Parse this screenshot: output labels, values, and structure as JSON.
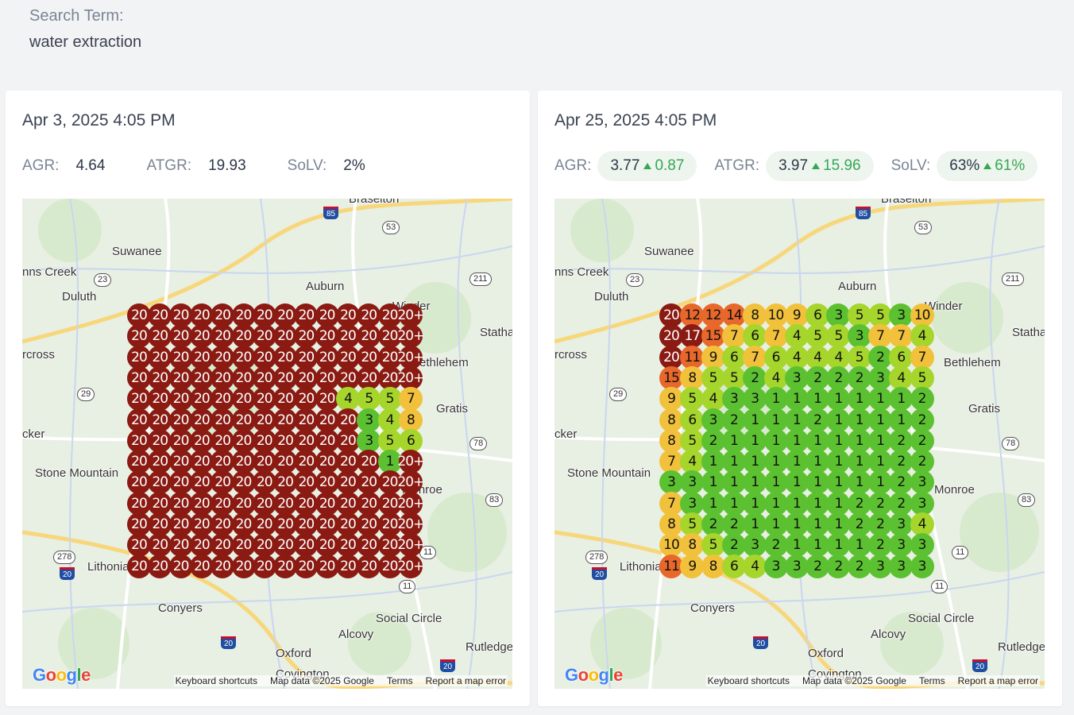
{
  "search": {
    "label": "Search Term:",
    "value": "water extraction"
  },
  "colors": {
    "rank_1_3": "#5cc130",
    "rank_4_6": "#a6d52c",
    "rank_7_10": "#f2c13b",
    "rank_11_15": "#e8672a",
    "rank_16_plus": "#8a1a12",
    "pill_bg": "#eef5ef",
    "delta_green": "#34a853"
  },
  "reports": [
    {
      "date": "Apr 3, 2025 4:05 PM",
      "metrics": [
        {
          "label": "AGR:",
          "value": "4.64"
        },
        {
          "label": "ATGR:",
          "value": "19.93"
        },
        {
          "label": "SoLV:",
          "value": "2%"
        }
      ],
      "grid": [
        [
          "20",
          "20",
          "20",
          "20",
          "20",
          "20",
          "20",
          "20",
          "20",
          "20",
          "20",
          "20",
          "20",
          "20+"
        ],
        [
          "20",
          "20",
          "20",
          "20",
          "20",
          "20",
          "20",
          "20",
          "20",
          "20",
          "20",
          "20",
          "20",
          "20+"
        ],
        [
          "20",
          "20",
          "20",
          "20",
          "20",
          "20",
          "20",
          "20",
          "20",
          "20",
          "20",
          "20",
          "20",
          "20+"
        ],
        [
          "20",
          "20",
          "20",
          "20",
          "20",
          "20",
          "20",
          "20",
          "20",
          "20",
          "20",
          "20",
          "20",
          "20+"
        ],
        [
          "20",
          "20",
          "20",
          "20",
          "20",
          "20",
          "20",
          "20",
          "20",
          "20",
          "4",
          "5",
          "5",
          "7"
        ],
        [
          "20",
          "20",
          "20",
          "20",
          "20",
          "20",
          "20",
          "20",
          "20",
          "20",
          "20",
          "3",
          "4",
          "8"
        ],
        [
          "20",
          "20",
          "20",
          "20",
          "20",
          "20",
          "20",
          "20",
          "20",
          "20",
          "20",
          "3",
          "5",
          "6"
        ],
        [
          "20",
          "20",
          "20",
          "20",
          "20",
          "20",
          "20",
          "20",
          "20",
          "20",
          "20",
          "20",
          "1",
          "20+"
        ],
        [
          "20",
          "20",
          "20",
          "20",
          "20",
          "20",
          "20",
          "20",
          "20",
          "20",
          "20",
          "20",
          "20",
          "20+"
        ],
        [
          "20",
          "20",
          "20",
          "20",
          "20",
          "20",
          "20",
          "20",
          "20",
          "20",
          "20",
          "20",
          "20",
          "20+"
        ],
        [
          "20",
          "20",
          "20",
          "20",
          "20",
          "20",
          "20",
          "20",
          "20",
          "20",
          "20",
          "20",
          "20",
          "20+"
        ],
        [
          "20",
          "20",
          "20",
          "20",
          "20",
          "20",
          "20",
          "20",
          "20",
          "20",
          "20",
          "20",
          "20",
          "20+"
        ],
        [
          "20",
          "20",
          "20",
          "20",
          "20",
          "20",
          "20",
          "20",
          "20",
          "20",
          "20",
          "20",
          "20",
          "20+"
        ]
      ]
    },
    {
      "date": "Apr 25, 2025 4:05 PM",
      "metrics": [
        {
          "label": "AGR:",
          "value": "3.77",
          "delta": "0.87"
        },
        {
          "label": "ATGR:",
          "value": "3.97",
          "delta": "15.96"
        },
        {
          "label": "SoLV:",
          "value": "63%",
          "delta": "61%"
        }
      ],
      "grid": [
        [
          "20",
          "12",
          "12",
          "14",
          "8",
          "10",
          "9",
          "6",
          "3",
          "5",
          "5",
          "3",
          "10"
        ],
        [
          "20",
          "17",
          "15",
          "7",
          "6",
          "7",
          "4",
          "5",
          "5",
          "3",
          "7",
          "7",
          "4"
        ],
        [
          "20",
          "11",
          "9",
          "6",
          "7",
          "6",
          "4",
          "4",
          "4",
          "5",
          "2",
          "6",
          "7"
        ],
        [
          "15",
          "8",
          "5",
          "5",
          "2",
          "4",
          "3",
          "2",
          "2",
          "2",
          "3",
          "4",
          "5"
        ],
        [
          "9",
          "5",
          "4",
          "3",
          "3",
          "1",
          "1",
          "1",
          "1",
          "1",
          "1",
          "1",
          "2"
        ],
        [
          "8",
          "6",
          "3",
          "2",
          "1",
          "1",
          "1",
          "2",
          "1",
          "1",
          "1",
          "1",
          "2"
        ],
        [
          "8",
          "5",
          "2",
          "1",
          "1",
          "1",
          "1",
          "1",
          "1",
          "1",
          "1",
          "2",
          "2"
        ],
        [
          "7",
          "4",
          "1",
          "1",
          "1",
          "1",
          "1",
          "1",
          "1",
          "1",
          "1",
          "2",
          "2"
        ],
        [
          "3",
          "3",
          "1",
          "1",
          "1",
          "1",
          "1",
          "1",
          "1",
          "1",
          "1",
          "2",
          "3"
        ],
        [
          "7",
          "3",
          "1",
          "1",
          "1",
          "1",
          "1",
          "1",
          "1",
          "2",
          "2",
          "2",
          "3"
        ],
        [
          "8",
          "5",
          "2",
          "2",
          "1",
          "1",
          "1",
          "1",
          "1",
          "2",
          "2",
          "3",
          "4"
        ],
        [
          "10",
          "8",
          "5",
          "2",
          "3",
          "2",
          "1",
          "1",
          "1",
          "1",
          "2",
          "3",
          "3"
        ],
        [
          "11",
          "9",
          "8",
          "6",
          "4",
          "3",
          "3",
          "2",
          "2",
          "2",
          "3",
          "3",
          "3"
        ]
      ]
    }
  ],
  "map": {
    "places": [
      "Braselton",
      "Suwanee",
      "Auburn",
      "Duluth",
      "Winder",
      "Statham",
      "Bethlehem",
      "Gratis",
      "Stone Mountain",
      "Monroe",
      "Lithonia",
      "Conyers",
      "Social Circle",
      "Alcovy",
      "Oxford",
      "Covington",
      "Rutledge",
      "nns Creek",
      "rcross",
      "cker"
    ],
    "route_shields": [
      "53",
      "23",
      "211",
      "29",
      "78",
      "83",
      "11",
      "278",
      "11"
    ],
    "interstate_shields": [
      "85",
      "20",
      "20",
      "20"
    ],
    "google_logo": "Google",
    "attribution": [
      "Keyboard shortcuts",
      "Map data ©2025 Google",
      "Terms",
      "Report a map error"
    ]
  }
}
